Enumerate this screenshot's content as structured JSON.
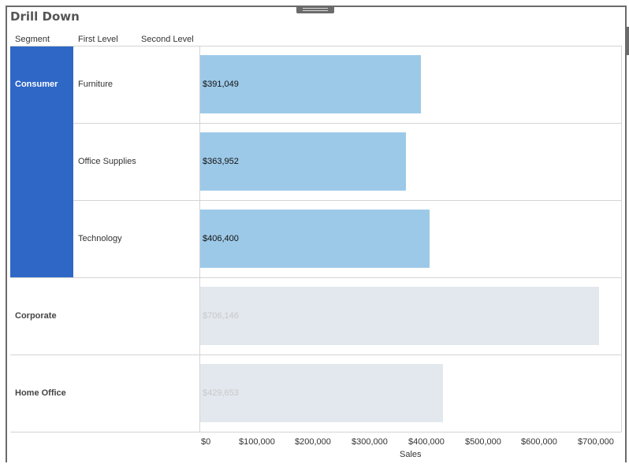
{
  "title": "Drill Down",
  "headers": {
    "segment": "Segment",
    "first_level": "First Level",
    "second_level": "Second Level"
  },
  "colors": {
    "consumer_fill": "#2f67c7",
    "active_bar": "#9dc9e8",
    "inactive_bar": "#e3e8ef",
    "inactive_text": "#c8c8c8"
  },
  "rows": [
    {
      "segment": "Consumer",
      "category": "Furniture",
      "label": "$391,049"
    },
    {
      "segment": "",
      "category": "Office Supplies",
      "label": "$363,952"
    },
    {
      "segment": "",
      "category": "Technology",
      "label": "$406,400"
    },
    {
      "segment": "Corporate",
      "category": "",
      "label": "$706,146"
    },
    {
      "segment": "Home Office",
      "category": "",
      "label": "$429,653"
    }
  ],
  "axis": {
    "title": "Sales",
    "ticks": [
      "$0",
      "$100,000",
      "$200,000",
      "$300,000",
      "$400,000",
      "$500,000",
      "$600,000",
      "$700,000"
    ]
  },
  "chart_data": {
    "type": "bar",
    "orientation": "horizontal",
    "categories": [
      "Consumer / Furniture",
      "Consumer / Office Supplies",
      "Consumer / Technology",
      "Corporate",
      "Home Office"
    ],
    "values": [
      391049,
      363952,
      406400,
      706146,
      429653
    ],
    "highlighted": [
      true,
      true,
      true,
      false,
      false
    ],
    "xlabel": "Sales",
    "xlim": [
      0,
      735000
    ],
    "grid": false
  }
}
